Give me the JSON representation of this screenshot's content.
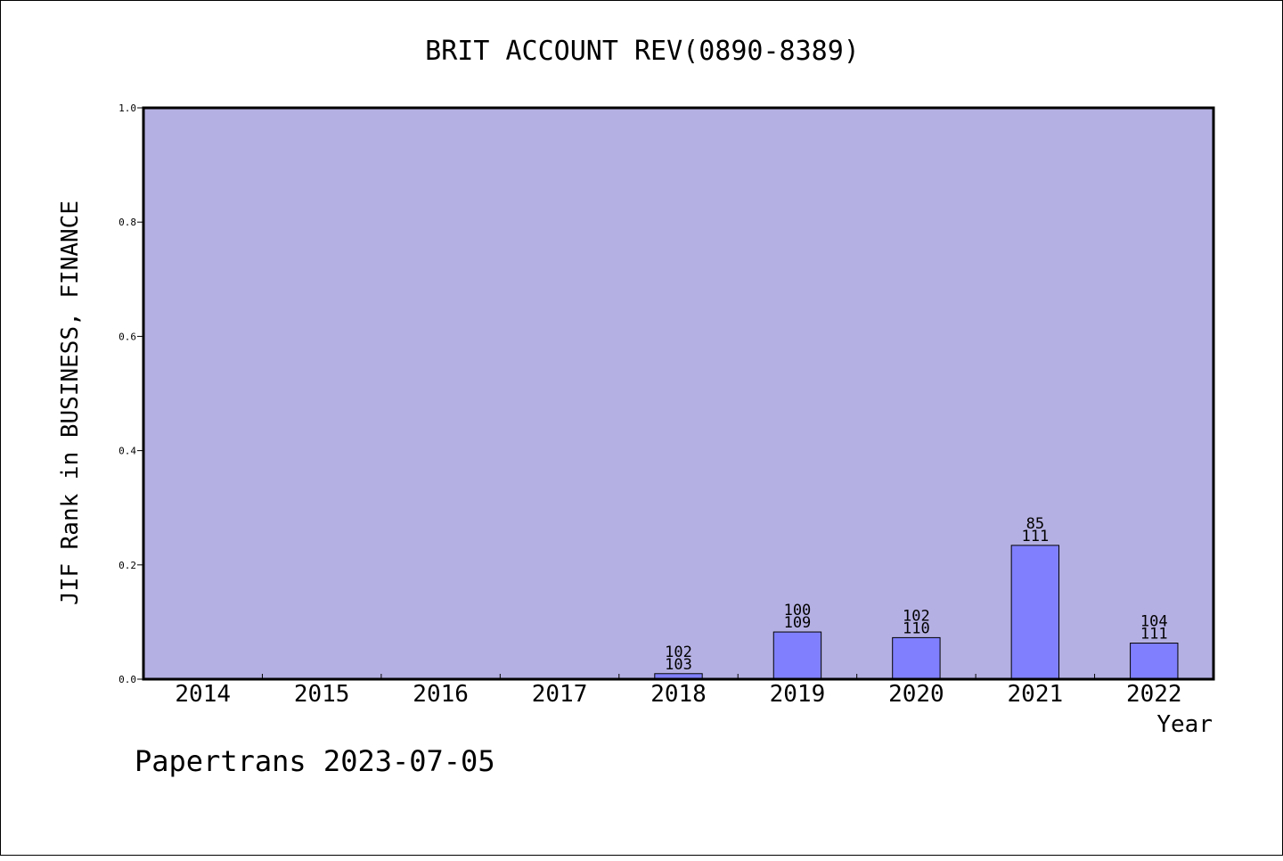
{
  "chart_data": {
    "type": "bar",
    "title": "BRIT ACCOUNT REV(0890-8389)",
    "xlabel": "Year",
    "ylabel": "JIF Rank in BUSINESS, FINANCE",
    "footer": "Papertrans 2023-07-05",
    "categories": [
      "2014",
      "2015",
      "2016",
      "2017",
      "2018",
      "2019",
      "2020",
      "2021",
      "2022"
    ],
    "values": [
      0,
      0,
      0,
      0,
      0.0097,
      0.0826,
      0.0727,
      0.2342,
      0.0631
    ],
    "rank": [
      null,
      null,
      null,
      null,
      102,
      100,
      102,
      85,
      104
    ],
    "total": [
      null,
      null,
      null,
      null,
      103,
      109,
      110,
      111,
      111
    ],
    "ylim": [
      0,
      1.0
    ],
    "yticks": [
      "0.0",
      "0.2",
      "0.4",
      "0.6",
      "0.8",
      "1.0"
    ],
    "grid": false,
    "colors": {
      "plot_background": "#b5b0e3",
      "bar_fill": "#8080ff",
      "bar_stroke": "#000000"
    }
  }
}
